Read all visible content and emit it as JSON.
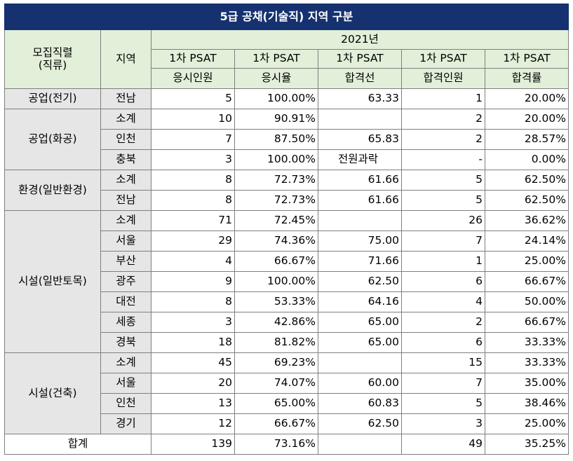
{
  "title": "5급 공채(기술직) 지역 구분",
  "header": {
    "col_group_line1": "모집직렬",
    "col_group_line2": "(직류)",
    "col_region": "지역",
    "year": "2021년",
    "cols": [
      {
        "line1": "1차 PSAT",
        "line2": "응시인원"
      },
      {
        "line1": "1차 PSAT",
        "line2": "응시율"
      },
      {
        "line1": "1차  PSAT",
        "line2": "합격선"
      },
      {
        "line1": "1차  PSAT",
        "line2": "합격인원"
      },
      {
        "line1": "1차  PSAT",
        "line2": "합격률"
      }
    ]
  },
  "groups": [
    {
      "name": "공업(전기)",
      "rows": [
        {
          "region": "전남",
          "applicants": "5",
          "rate": "100.00%",
          "cutoff": "63.33",
          "passed": "1",
          "pass_rate": "20.00%"
        }
      ]
    },
    {
      "name": "공업(화공)",
      "rows": [
        {
          "region": "소계",
          "applicants": "10",
          "rate": "90.91%",
          "cutoff": "",
          "passed": "2",
          "pass_rate": "20.00%"
        },
        {
          "region": "인천",
          "applicants": "7",
          "rate": "87.50%",
          "cutoff": "65.83",
          "passed": "2",
          "pass_rate": "28.57%"
        },
        {
          "region": "충북",
          "applicants": "3",
          "rate": "100.00%",
          "cutoff": "전원과락",
          "passed": "-",
          "pass_rate": "0.00%"
        }
      ]
    },
    {
      "name": "환경(일반환경)",
      "rows": [
        {
          "region": "소계",
          "applicants": "8",
          "rate": "72.73%",
          "cutoff": "61.66",
          "passed": "5",
          "pass_rate": "62.50%"
        },
        {
          "region": "전남",
          "applicants": "8",
          "rate": "72.73%",
          "cutoff": "61.66",
          "passed": "5",
          "pass_rate": "62.50%"
        }
      ]
    },
    {
      "name": "시설(일반토목)",
      "rows": [
        {
          "region": "소계",
          "applicants": "71",
          "rate": "72.45%",
          "cutoff": "",
          "passed": "26",
          "pass_rate": "36.62%"
        },
        {
          "region": "서울",
          "applicants": "29",
          "rate": "74.36%",
          "cutoff": "75.00",
          "passed": "7",
          "pass_rate": "24.14%"
        },
        {
          "region": "부산",
          "applicants": "4",
          "rate": "66.67%",
          "cutoff": "71.66",
          "passed": "1",
          "pass_rate": "25.00%"
        },
        {
          "region": "광주",
          "applicants": "9",
          "rate": "100.00%",
          "cutoff": "62.50",
          "passed": "6",
          "pass_rate": "66.67%"
        },
        {
          "region": "대전",
          "applicants": "8",
          "rate": "53.33%",
          "cutoff": "64.16",
          "passed": "4",
          "pass_rate": "50.00%"
        },
        {
          "region": "세종",
          "applicants": "3",
          "rate": "42.86%",
          "cutoff": "65.00",
          "passed": "2",
          "pass_rate": "66.67%"
        },
        {
          "region": "경북",
          "applicants": "18",
          "rate": "81.82%",
          "cutoff": "65.00",
          "passed": "6",
          "pass_rate": "33.33%"
        }
      ]
    },
    {
      "name": "시설(건축)",
      "rows": [
        {
          "region": "소계",
          "applicants": "45",
          "rate": "69.23%",
          "cutoff": "",
          "passed": "15",
          "pass_rate": "33.33%"
        },
        {
          "region": "서울",
          "applicants": "20",
          "rate": "74.07%",
          "cutoff": "60.00",
          "passed": "7",
          "pass_rate": "35.00%"
        },
        {
          "region": "인천",
          "applicants": "13",
          "rate": "65.00%",
          "cutoff": "60.83",
          "passed": "5",
          "pass_rate": "38.46%"
        },
        {
          "region": "경기",
          "applicants": "12",
          "rate": "66.67%",
          "cutoff": "62.50",
          "passed": "3",
          "pass_rate": "25.00%"
        }
      ]
    }
  ],
  "total": {
    "label": "합계",
    "applicants": "139",
    "rate": "73.16%",
    "cutoff": "",
    "passed": "49",
    "pass_rate": "35.25%"
  },
  "colors": {
    "title_bg": "#16316f",
    "header_bg": "#e2efd9",
    "label_bg": "#e6e6e6",
    "border": "#7f7f7f"
  }
}
